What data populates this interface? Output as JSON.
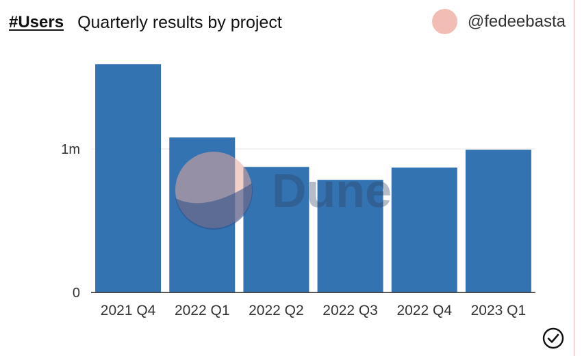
{
  "header": {
    "metric": "#Users",
    "title": "Quarterly results by project",
    "author_handle": "@fedeebasta"
  },
  "watermark": {
    "text": "Dune"
  },
  "icons": {
    "avatar": "avatar-circle",
    "check": "check-circle-icon"
  },
  "colors": {
    "bar": "#3373b2",
    "avatar": "#f2bdb4",
    "border": "#f0b9b2"
  },
  "chart_data": {
    "type": "bar",
    "categories": [
      "2021 Q4",
      "2022 Q1",
      "2022 Q2",
      "2022 Q3",
      "2022 Q4",
      "2023 Q1"
    ],
    "values": [
      1590000,
      1080000,
      875000,
      785000,
      870000,
      995000
    ],
    "yticks": [
      {
        "value": 0,
        "label": "0"
      },
      {
        "value": 1000000,
        "label": "1m"
      }
    ],
    "ylim": [
      0,
      1600000
    ],
    "grid": true,
    "legend": "none"
  }
}
